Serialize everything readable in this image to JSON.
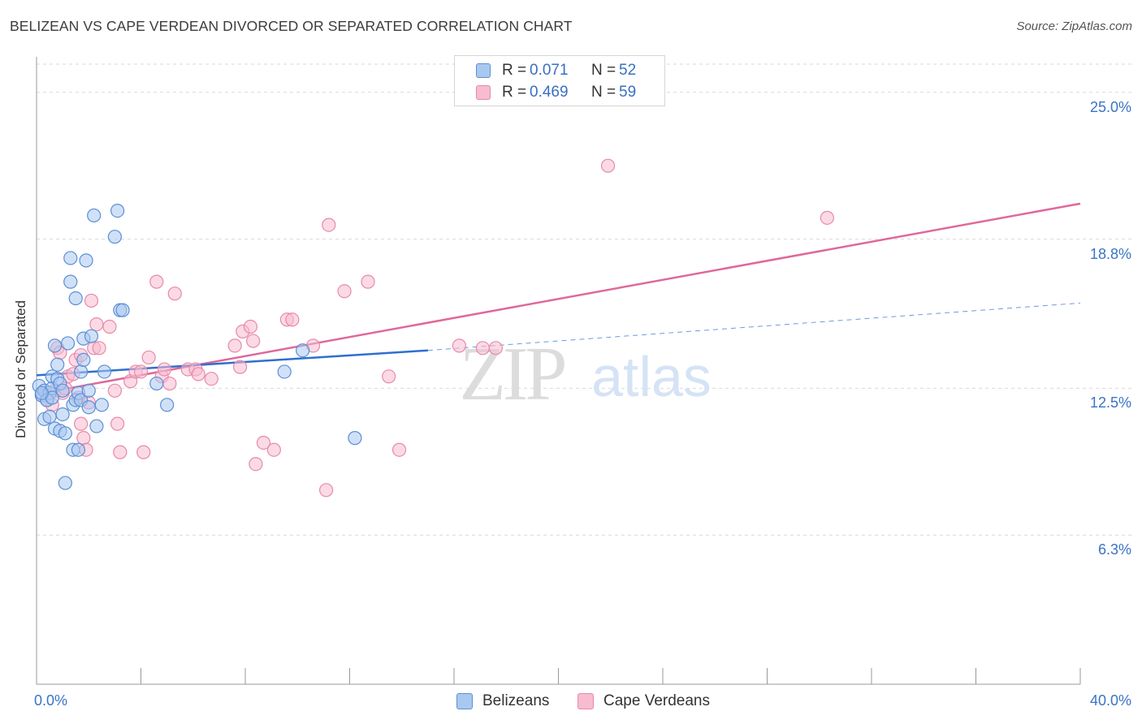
{
  "title": "BELIZEAN VS CAPE VERDEAN DIVORCED OR SEPARATED CORRELATION CHART",
  "source": "Source: ZipAtlas.com",
  "watermark": {
    "zip": "ZIP",
    "atlas": "atlas"
  },
  "colors": {
    "blue_fill": "#a9c8f0",
    "blue_stroke": "#5b8fd6",
    "blue_line": "#2f6fd0",
    "pink_fill": "#f7bcd0",
    "pink_stroke": "#e889aa",
    "pink_line": "#e0689a",
    "grid": "#d9d9d9",
    "axis_text": "#3a74c6"
  },
  "legend": {
    "rows": [
      {
        "r_label": "R =",
        "r_value": "0.071",
        "n_label": "N =",
        "n_value": "52"
      },
      {
        "r_label": "R =",
        "r_value": "0.469",
        "n_label": "N =",
        "n_value": "59"
      }
    ]
  },
  "bottom_legend": {
    "series1": "Belizeans",
    "series2": "Cape Verdeans"
  },
  "chart_data": {
    "type": "scatter",
    "ylabel": "Divorced or Separated",
    "xlim": [
      0,
      40
    ],
    "ylim": [
      0,
      26.5
    ],
    "x_tick_labels": {
      "min": "0.0%",
      "max": "40.0%"
    },
    "y_ticks": [
      {
        "value": 6.3,
        "label": "6.3%"
      },
      {
        "value": 12.5,
        "label": "12.5%"
      },
      {
        "value": 18.8,
        "label": "18.8%"
      },
      {
        "value": 25.0,
        "label": "25.0%"
      }
    ],
    "series": [
      {
        "name": "Belizeans",
        "trend": {
          "x0": 0,
          "y0": 13.05,
          "x1": 15,
          "y1": 14.1,
          "dash_to_x": 40,
          "dash_to_y": 16.1
        },
        "points": [
          [
            0.1,
            12.6
          ],
          [
            0.2,
            12.2
          ],
          [
            0.3,
            11.2
          ],
          [
            0.3,
            12.4
          ],
          [
            0.4,
            12.0
          ],
          [
            0.5,
            12.3
          ],
          [
            0.6,
            12.5
          ],
          [
            0.6,
            13.0
          ],
          [
            0.7,
            14.3
          ],
          [
            0.7,
            10.8
          ],
          [
            0.8,
            12.9
          ],
          [
            0.8,
            13.5
          ],
          [
            0.9,
            12.7
          ],
          [
            0.9,
            10.7
          ],
          [
            1.0,
            12.4
          ],
          [
            1.0,
            11.4
          ],
          [
            1.1,
            10.6
          ],
          [
            1.2,
            14.4
          ],
          [
            1.3,
            17.0
          ],
          [
            1.3,
            18.0
          ],
          [
            1.4,
            11.8
          ],
          [
            1.4,
            9.9
          ],
          [
            1.5,
            12.0
          ],
          [
            1.6,
            9.9
          ],
          [
            1.5,
            16.3
          ],
          [
            1.6,
            12.3
          ],
          [
            1.7,
            13.2
          ],
          [
            1.7,
            12.0
          ],
          [
            1.8,
            14.6
          ],
          [
            1.8,
            13.7
          ],
          [
            1.9,
            17.9
          ],
          [
            2.0,
            11.7
          ],
          [
            2.0,
            12.4
          ],
          [
            2.1,
            14.7
          ],
          [
            2.2,
            19.8
          ],
          [
            2.3,
            10.9
          ],
          [
            2.5,
            11.8
          ],
          [
            2.6,
            13.2
          ],
          [
            3.0,
            18.9
          ],
          [
            3.1,
            20.0
          ],
          [
            3.2,
            15.8
          ],
          [
            3.3,
            15.8
          ],
          [
            4.6,
            12.7
          ],
          [
            5.0,
            11.8
          ],
          [
            9.5,
            13.2
          ],
          [
            10.2,
            14.1
          ],
          [
            12.2,
            10.4
          ],
          [
            1.1,
            8.5
          ],
          [
            0.4,
            12.0
          ],
          [
            0.5,
            11.3
          ],
          [
            0.6,
            12.1
          ],
          [
            0.2,
            12.3
          ]
        ]
      },
      {
        "name": "Cape Verdeans",
        "trend": {
          "x0": 0,
          "y0": 12.25,
          "x1": 40,
          "y1": 20.3
        },
        "points": [
          [
            0.2,
            12.2
          ],
          [
            0.4,
            12.0
          ],
          [
            0.6,
            11.8
          ],
          [
            0.7,
            12.4
          ],
          [
            0.8,
            14.2
          ],
          [
            0.9,
            14.0
          ],
          [
            1.0,
            12.3
          ],
          [
            1.1,
            12.5
          ],
          [
            1.2,
            13.0
          ],
          [
            1.4,
            13.1
          ],
          [
            1.5,
            13.7
          ],
          [
            1.6,
            12.1
          ],
          [
            1.7,
            11.0
          ],
          [
            1.7,
            13.9
          ],
          [
            1.8,
            10.4
          ],
          [
            1.9,
            9.9
          ],
          [
            2.0,
            11.9
          ],
          [
            2.1,
            16.2
          ],
          [
            2.2,
            14.2
          ],
          [
            2.3,
            15.2
          ],
          [
            2.4,
            14.2
          ],
          [
            2.8,
            15.1
          ],
          [
            3.0,
            12.4
          ],
          [
            3.1,
            11.0
          ],
          [
            3.2,
            9.8
          ],
          [
            3.6,
            12.8
          ],
          [
            3.8,
            13.2
          ],
          [
            4.0,
            13.2
          ],
          [
            4.1,
            9.8
          ],
          [
            4.3,
            13.8
          ],
          [
            4.6,
            17.0
          ],
          [
            4.8,
            13.0
          ],
          [
            4.9,
            13.3
          ],
          [
            5.1,
            12.7
          ],
          [
            5.3,
            16.5
          ],
          [
            5.8,
            13.3
          ],
          [
            6.1,
            13.3
          ],
          [
            6.2,
            13.1
          ],
          [
            6.7,
            12.9
          ],
          [
            7.6,
            14.3
          ],
          [
            7.8,
            13.4
          ],
          [
            7.9,
            14.9
          ],
          [
            8.2,
            15.1
          ],
          [
            8.3,
            14.5
          ],
          [
            8.4,
            9.3
          ],
          [
            8.7,
            10.2
          ],
          [
            9.1,
            9.9
          ],
          [
            9.6,
            15.4
          ],
          [
            9.8,
            15.4
          ],
          [
            10.6,
            14.3
          ],
          [
            11.2,
            19.4
          ],
          [
            11.1,
            8.2
          ],
          [
            11.8,
            16.6
          ],
          [
            12.7,
            17.0
          ],
          [
            13.5,
            13.0
          ],
          [
            13.9,
            9.9
          ],
          [
            16.2,
            14.3
          ],
          [
            17.1,
            14.2
          ],
          [
            17.6,
            14.2
          ]
        ],
        "outliers": [
          [
            21.9,
            21.9
          ],
          [
            30.3,
            19.7
          ]
        ]
      }
    ]
  }
}
